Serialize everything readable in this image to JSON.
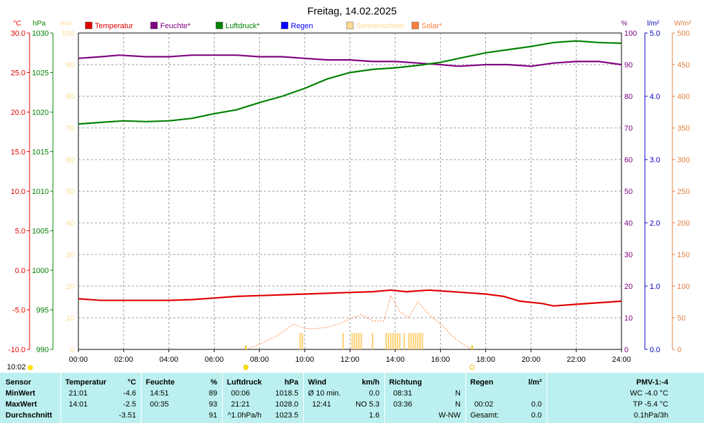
{
  "header": {
    "title": "Freitag, 14.02.2025"
  },
  "chart_data": {
    "type": "line",
    "title": "Freitag, 14.02.2025",
    "x_ticks": [
      "00:00",
      "02:00",
      "04:00",
      "06:00",
      "08:00",
      "10:00",
      "12:00",
      "14:00",
      "16:00",
      "18:00",
      "20:00",
      "22:00",
      "24:00"
    ],
    "legend": [
      {
        "name": "Temperatur",
        "color": "#e00000"
      },
      {
        "name": "Feuchte*",
        "color": "#800080"
      },
      {
        "name": "Luftdruck*",
        "color": "#008000"
      },
      {
        "name": "Regen",
        "color": "#0000ff"
      },
      {
        "name": "Sonnenschein",
        "color": "#ffd890"
      },
      {
        "name": "Solar*",
        "color": "#ff8040"
      }
    ],
    "axes": {
      "temp": {
        "unit": "°C",
        "color": "#e00000",
        "min": -10,
        "max": 30,
        "ticks": [
          "30.0",
          "25.0",
          "20.0",
          "15.0",
          "10.0",
          "5.0",
          "0.0",
          "-5.0",
          "-10.0"
        ]
      },
      "pressure": {
        "unit": "hPa",
        "color": "#008000",
        "min": 990,
        "max": 1030,
        "ticks": [
          "1030",
          "1025",
          "1020",
          "1015",
          "1010",
          "1005",
          "1000",
          "995",
          "990"
        ]
      },
      "sunshine": {
        "unit": "min",
        "color": "#ffd890",
        "min": 0,
        "max": 100,
        "ticks": [
          "100",
          "90",
          "80",
          "70",
          "60",
          "50",
          "40",
          "30",
          "20",
          "10",
          "0"
        ]
      },
      "humidity": {
        "unit": "%",
        "color": "#800080",
        "min": 0,
        "max": 100,
        "ticks": [
          "100",
          "90",
          "80",
          "70",
          "60",
          "50",
          "40",
          "30",
          "20",
          "10",
          "0"
        ]
      },
      "rain": {
        "unit": "l/m²",
        "color": "#0000c0",
        "min": 0,
        "max": 5,
        "ticks": [
          "5.0",
          "4.0",
          "3.0",
          "2.0",
          "1.0",
          "0.0"
        ]
      },
      "solar": {
        "unit": "W/m²",
        "color": "#e08040",
        "min": 0,
        "max": 500,
        "ticks": [
          "500",
          "450",
          "400",
          "350",
          "300",
          "250",
          "200",
          "150",
          "100",
          "50",
          "0"
        ]
      }
    },
    "series": [
      {
        "name": "Temperatur",
        "axis": "temp",
        "color": "#e00000",
        "x": [
          0,
          1,
          2,
          3,
          4,
          5,
          6,
          7,
          8,
          9,
          10,
          11,
          12,
          13,
          13.8,
          14.5,
          15,
          15.5,
          16,
          17,
          18,
          18.8,
          19.5,
          20.5,
          21,
          22,
          23,
          24
        ],
        "values": [
          -3.6,
          -3.8,
          -3.8,
          -3.8,
          -3.8,
          -3.7,
          -3.5,
          -3.3,
          -3.2,
          -3.1,
          -3.0,
          -2.9,
          -2.8,
          -2.7,
          -2.5,
          -2.7,
          -2.6,
          -2.5,
          -2.6,
          -2.8,
          -3.0,
          -3.3,
          -3.9,
          -4.2,
          -4.5,
          -4.3,
          -4.1,
          -3.9
        ]
      },
      {
        "name": "Feuchte*",
        "axis": "humidity",
        "color": "#800080",
        "x": [
          0,
          1,
          1.8,
          3,
          4,
          5,
          6,
          7,
          8,
          9,
          10,
          11,
          12,
          13,
          14,
          15,
          16,
          16.8,
          18,
          19,
          20,
          21,
          22,
          23,
          24
        ],
        "values": [
          92,
          92.5,
          93,
          92.5,
          92.5,
          93,
          93,
          93,
          92.5,
          92.5,
          92,
          91.5,
          91.5,
          91,
          91,
          90.5,
          90,
          89.5,
          90,
          90,
          89.5,
          90.5,
          91,
          91,
          90
        ]
      },
      {
        "name": "Luftdruck*",
        "axis": "pressure",
        "color": "#008000",
        "x": [
          0,
          1,
          2,
          3,
          4,
          5,
          6,
          7,
          8,
          9,
          10,
          11,
          12,
          13,
          14,
          15,
          16,
          17,
          18,
          19,
          20,
          21,
          22,
          23,
          24
        ],
        "values": [
          1018.5,
          1018.7,
          1018.9,
          1018.8,
          1018.9,
          1019.2,
          1019.8,
          1020.3,
          1021.2,
          1022.0,
          1023.0,
          1024.2,
          1025.0,
          1025.4,
          1025.6,
          1025.9,
          1026.3,
          1026.9,
          1027.5,
          1027.9,
          1028.3,
          1028.8,
          1029.0,
          1028.8,
          1028.7
        ]
      },
      {
        "name": "Solar*",
        "axis": "solar",
        "color": "#ff8040",
        "dashed": true,
        "x": [
          7.4,
          8,
          8.8,
          9.5,
          10,
          10.5,
          11,
          11.5,
          12,
          12.5,
          13,
          13.5,
          13.8,
          14.2,
          14.6,
          15,
          15.5,
          16,
          16.5,
          17,
          17.4
        ],
        "values": [
          0,
          8,
          22,
          40,
          33,
          33,
          35,
          40,
          48,
          55,
          45,
          45,
          85,
          60,
          50,
          75,
          55,
          40,
          22,
          8,
          0
        ]
      }
    ],
    "sunshine_bars_hours": [
      9.8,
      9.9,
      11.7,
      12.1,
      12.2,
      12.3,
      12.4,
      12.5,
      13.0,
      13.6,
      13.7,
      13.8,
      13.9,
      14.0,
      14.1,
      14.2,
      14.4,
      14.6,
      14.7,
      14.8,
      14.9,
      15.0,
      15.1,
      15.2
    ],
    "sunrise_hour": 7.4,
    "sunset_hour": 17.4
  },
  "stats": {
    "time": "10:02",
    "row_labels": [
      "Sensor",
      "MinWert",
      "MaxWert",
      "Durchschnitt"
    ],
    "temperature": {
      "header": "Temperatur",
      "unit": "°C",
      "min_time": "21:01",
      "min_val": "-4.6",
      "max_time": "14:01",
      "max_val": "-2.5",
      "avg": "-3.51"
    },
    "humidity": {
      "header": "Feuchte",
      "unit": "%",
      "min_time": "14:51",
      "min_val": "89",
      "max_time": "00:35",
      "max_val": "93",
      "avg": "91"
    },
    "pressure": {
      "header": "Luftdruck",
      "unit": "hPa",
      "min_time": "00:06",
      "min_val": "1018.5",
      "max_time": "21:21",
      "max_val": "1028.0",
      "trend": "^1.0hPa/h",
      "avg": "1023.5"
    },
    "wind": {
      "header": "Wind",
      "unit": "km/h",
      "r1_label": "Ø 10 min.",
      "r1_val": "0.0",
      "r2_time": "12:41",
      "r2_val": "NO 5.3",
      "avg": "1.6"
    },
    "direction": {
      "header": "Richtung",
      "r1_time": "08:31",
      "r1_dir": "N",
      "r2_time": "03:36",
      "r2_dir": "N",
      "avg": "W-NW"
    },
    "rain": {
      "header": "Regen",
      "unit": "l/m²",
      "r1_val": "0.0",
      "r2_time": "00:02",
      "r2_val": "0.0",
      "total_label": "Gesamt:",
      "total_val": "0.0"
    },
    "pmv": {
      "header": "PMV-1:-4",
      "wc": "WC -4.0 °C",
      "tp": "TP -5.4 °C",
      "trend": "0.1hPa/3h"
    }
  }
}
